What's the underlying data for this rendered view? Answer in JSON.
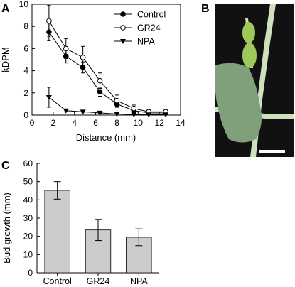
{
  "panels": {
    "a_label": "A",
    "b_label": "B",
    "c_label": "C"
  },
  "chart_data": [
    {
      "type": "line",
      "panel": "A",
      "xlabel": "Distance (mm)",
      "ylabel": "kDPM",
      "xlim": [
        0,
        14
      ],
      "ylim": [
        0,
        10
      ],
      "xticks": [
        0,
        2,
        4,
        6,
        8,
        10,
        12,
        14
      ],
      "yticks": [
        0,
        2,
        4,
        6,
        8,
        10
      ],
      "legend_position": "top-right",
      "series": [
        {
          "name": "Control",
          "marker": "filled-circle",
          "x": [
            1.6,
            3.2,
            4.8,
            6.4,
            8.0,
            9.6,
            11.0,
            12.6
          ],
          "y": [
            7.5,
            5.3,
            4.3,
            2.1,
            1.0,
            0.4,
            0.2,
            0.2
          ],
          "err": [
            0.8,
            0.6,
            0.5,
            0.4,
            0.3,
            0.15,
            0.1,
            0.1
          ]
        },
        {
          "name": "GR24",
          "marker": "open-circle",
          "x": [
            1.6,
            3.2,
            4.8,
            6.4,
            8.0,
            9.6,
            11.0,
            12.6
          ],
          "y": [
            8.5,
            6.0,
            5.2,
            3.1,
            1.3,
            0.6,
            0.3,
            0.3
          ],
          "err": [
            1.4,
            0.9,
            1.0,
            0.7,
            0.5,
            0.3,
            0.2,
            0.2
          ]
        },
        {
          "name": "NPA",
          "marker": "filled-triangle-down",
          "x": [
            1.6,
            3.2,
            4.8,
            6.4,
            8.0,
            9.6,
            11.0,
            12.6
          ],
          "y": [
            1.6,
            0.4,
            0.3,
            0.2,
            0.1,
            0.05,
            0.05,
            0.05
          ],
          "err": [
            0.9,
            0.1,
            0.05,
            0.05,
            0.03,
            0.02,
            0.02,
            0.02
          ]
        }
      ]
    },
    {
      "type": "bar",
      "panel": "C",
      "categories": [
        "Control",
        "GR24",
        "NPA"
      ],
      "values": [
        45.2,
        23.5,
        19.5
      ],
      "err": [
        4.8,
        5.8,
        4.6
      ],
      "ylabel": "Bud growth (mm)",
      "xlabel": "",
      "ylim": [
        0,
        60
      ],
      "yticks": [
        0,
        10,
        20,
        30,
        40,
        50,
        60
      ],
      "bar_color": "#cccccc"
    }
  ],
  "photo": {
    "background_color": "#111111",
    "leaf_color": "#7fa07a",
    "stem_color": "#cfe0bd",
    "bud_color": "#9fc85a",
    "scale_bar_color": "#ffffff"
  }
}
